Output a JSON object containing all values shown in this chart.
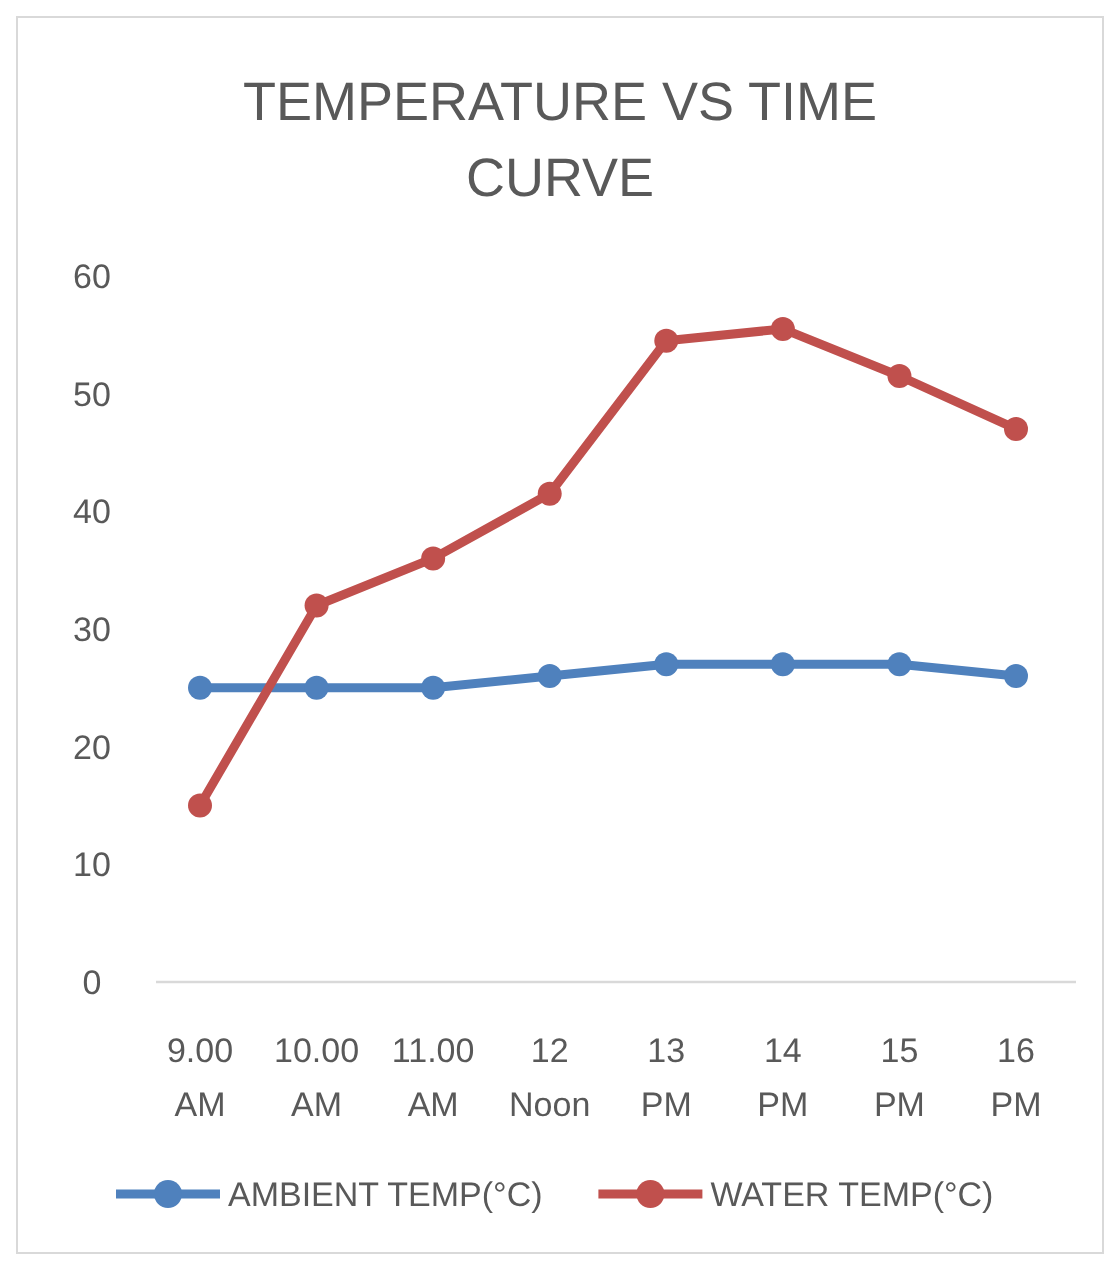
{
  "chart_data": {
    "type": "line",
    "title": "TEMPERATURE VS TIME CURVE",
    "categories": [
      "9.00 AM",
      "10.00 AM",
      "11.00 AM",
      "12 Noon",
      "13 PM",
      "14 PM",
      "15 PM",
      "16 PM"
    ],
    "series": [
      {
        "name": "AMBIENT TEMP(°C)",
        "color": "#4f81bd",
        "values": [
          25,
          25,
          25,
          26,
          27,
          27,
          27,
          26
        ]
      },
      {
        "name": "WATER TEMP(°C)",
        "color": "#c0504d",
        "values": [
          15,
          32,
          36,
          41.5,
          54.5,
          55.5,
          51.5,
          47
        ]
      }
    ],
    "ylim": [
      0,
      60
    ],
    "yticks": [
      0,
      10,
      20,
      30,
      40,
      50,
      60
    ],
    "grid": false,
    "legend": "bottom",
    "marker": "circle",
    "line_style": "solid"
  }
}
